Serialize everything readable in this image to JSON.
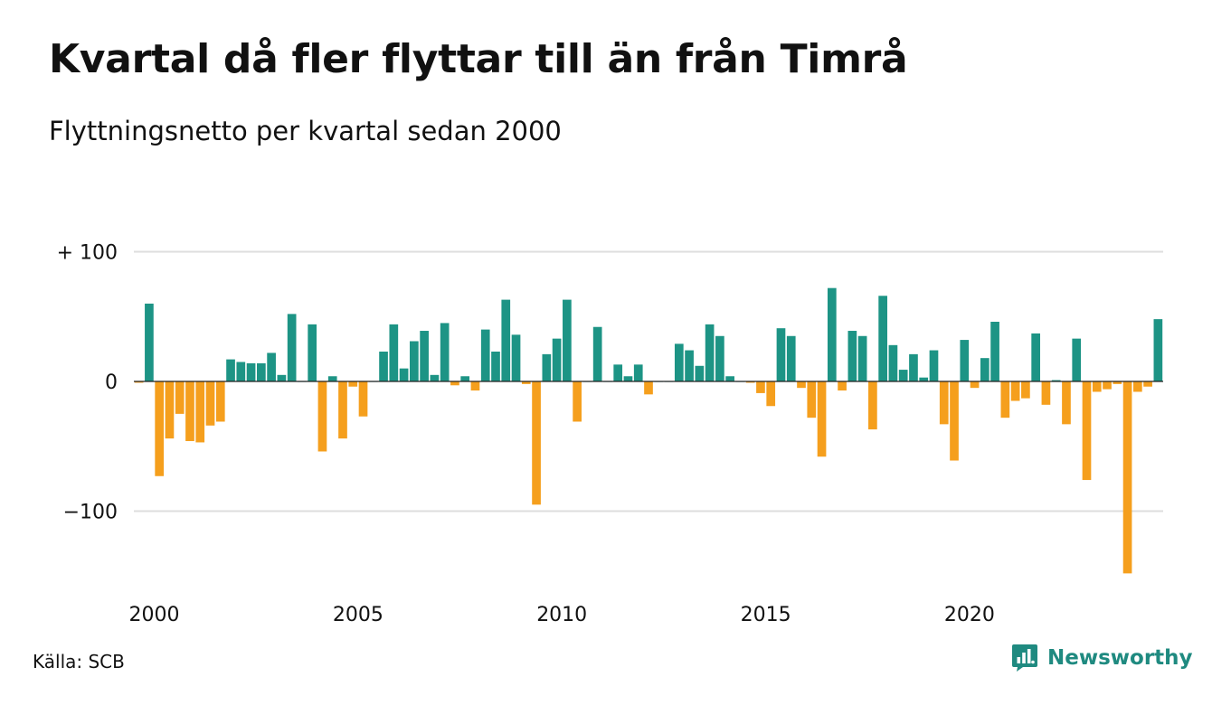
{
  "header": {
    "title": "Kvartal då fler flyttar till än från Timrå",
    "subtitle": "Flyttningsnetto per kvartal sedan 2000"
  },
  "footer": {
    "source": "Källa: SCB",
    "brand": "Newsworthy",
    "brand_icon": "bar-chart-speech-icon"
  },
  "colors": {
    "positive": "#1d9485",
    "negative": "#f59f1d",
    "grid": "#dedede",
    "brand": "#1f8a80"
  },
  "chart_data": {
    "type": "bar",
    "title": "Kvartal då fler flyttar till än från Timrå",
    "subtitle": "Flyttningsnetto per kvartal sedan 2000",
    "xlabel": "",
    "ylabel": "",
    "ylim": [
      -150,
      100
    ],
    "yticks": [
      100,
      0,
      -100
    ],
    "ytick_labels": [
      "+ 100",
      "0",
      "−100"
    ],
    "xticks": [
      2000,
      2005,
      2010,
      2015,
      2020
    ],
    "xtick_labels": [
      "2000",
      "2005",
      "2010",
      "2015",
      "2020"
    ],
    "grid": true,
    "categories": [
      "2000 K1",
      "2000 K2",
      "2000 K3",
      "2000 K4",
      "2001 K1",
      "2001 K2",
      "2001 K3",
      "2001 K4",
      "2002 K1",
      "2002 K2",
      "2002 K3",
      "2002 K4",
      "2003 K1",
      "2003 K2",
      "2003 K3",
      "2003 K4",
      "2004 K1",
      "2004 K2",
      "2004 K3",
      "2004 K4",
      "2005 K1",
      "2005 K2",
      "2005 K3",
      "2005 K4",
      "2006 K1",
      "2006 K2",
      "2006 K3",
      "2006 K4",
      "2007 K1",
      "2007 K2",
      "2007 K3",
      "2007 K4",
      "2008 K1",
      "2008 K2",
      "2008 K3",
      "2008 K4",
      "2009 K1",
      "2009 K2",
      "2009 K3",
      "2009 K4",
      "2010 K1",
      "2010 K2",
      "2010 K3",
      "2010 K4",
      "2011 K1",
      "2011 K2",
      "2011 K3",
      "2011 K4",
      "2012 K1",
      "2012 K2",
      "2012 K3",
      "2012 K4",
      "2013 K1",
      "2013 K2",
      "2013 K3",
      "2013 K4",
      "2014 K1",
      "2014 K2",
      "2014 K3",
      "2014 K4",
      "2015 K1",
      "2015 K2",
      "2015 K3",
      "2015 K4",
      "2016 K1",
      "2016 K2",
      "2016 K3",
      "2016 K4",
      "2017 K1",
      "2017 K2",
      "2017 K3",
      "2017 K4",
      "2018 K1",
      "2018 K2",
      "2018 K3",
      "2018 K4",
      "2019 K1",
      "2019 K2",
      "2019 K3",
      "2019 K4",
      "2020 K1",
      "2020 K2",
      "2020 K3",
      "2020 K4",
      "2021 K1",
      "2021 K2",
      "2021 K3",
      "2021 K4",
      "2022 K1",
      "2022 K2",
      "2022 K3",
      "2022 K4",
      "2023 K1",
      "2023 K2",
      "2023 K3",
      "2023 K4",
      "2024 K1",
      "2024 K2",
      "2024 K3",
      "2024 K4",
      "2025 K1"
    ],
    "values": [
      -1,
      60,
      -73,
      -44,
      -25,
      -46,
      -47,
      -34,
      -31,
      17,
      15,
      14,
      14,
      22,
      5,
      52,
      0,
      44,
      -54,
      4,
      -44,
      -4,
      -27,
      0,
      23,
      44,
      10,
      31,
      39,
      5,
      45,
      -3,
      4,
      -7,
      40,
      23,
      63,
      36,
      -2,
      -95,
      21,
      33,
      63,
      -31,
      0,
      42,
      0,
      13,
      4,
      13,
      -10,
      0,
      0,
      29,
      24,
      12,
      44,
      35,
      4,
      0,
      -1,
      -9,
      -19,
      41,
      35,
      -5,
      -28,
      -58,
      72,
      -7,
      39,
      35,
      -37,
      66,
      28,
      9,
      21,
      3,
      24,
      -33,
      -61,
      32,
      -5,
      18,
      46,
      -28,
      -15,
      -13,
      37,
      -18,
      1,
      -33,
      33,
      -76,
      -8,
      -6,
      -2,
      -148,
      -8,
      -4,
      48
    ]
  }
}
